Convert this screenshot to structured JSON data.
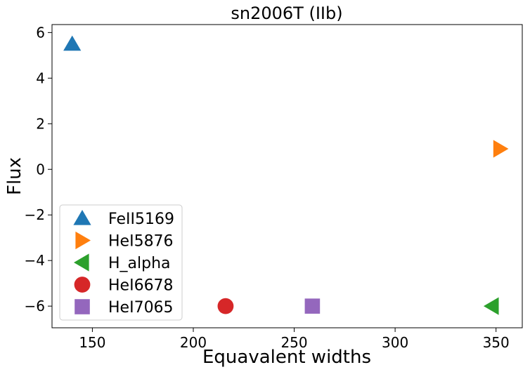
{
  "chart_data": {
    "type": "scatter",
    "title": "sn2006T (IIb)",
    "xlabel": "Equavalent widths",
    "ylabel": "Flux",
    "xlim": [
      130,
      363
    ],
    "ylim": [
      -6.95,
      6.35
    ],
    "xticks": [
      150,
      200,
      250,
      300,
      350
    ],
    "yticks": [
      -6,
      -4,
      -2,
      0,
      2,
      4,
      6
    ],
    "xtick_labels": [
      "150",
      "200",
      "250",
      "300",
      "350"
    ],
    "ytick_labels": [
      "−6",
      "−4",
      "−2",
      "0",
      "2",
      "4",
      "6"
    ],
    "grid": false,
    "legend_position": "lower-left",
    "series": [
      {
        "name": "FeII5169",
        "marker": "triangle-up",
        "color": "#1f77b4",
        "x": 140,
        "y": 5.5
      },
      {
        "name": "HeI5876",
        "marker": "triangle-right",
        "color": "#ff7f0e",
        "x": 352,
        "y": 0.9
      },
      {
        "name": "H_alpha",
        "marker": "triangle-left",
        "color": "#2ca02c",
        "x": 348,
        "y": -6.0
      },
      {
        "name": "HeI6678",
        "marker": "circle",
        "color": "#d62728",
        "x": 216,
        "y": -6.0
      },
      {
        "name": "HeI7065",
        "marker": "square",
        "color": "#9467bd",
        "x": 259,
        "y": -6.0
      }
    ]
  }
}
